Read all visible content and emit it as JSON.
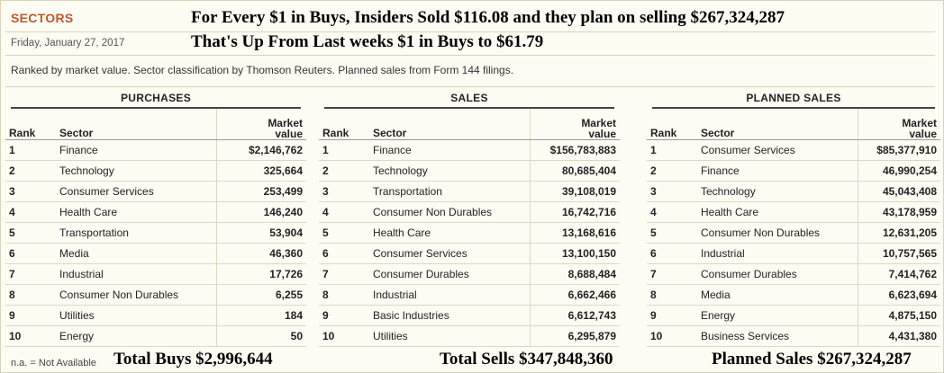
{
  "header": {
    "section_title": "SECTORS",
    "date": "Friday, January 27, 2017",
    "headline1": "For Every $1 in Buys, Insiders Sold $116.08 and they plan on selling $267,324,287",
    "headline2": "That's Up From Last weeks $1 in Buys to $61.79",
    "description": "Ranked by market value. Sector classification by Thomson Reuters. Planned sales from Form 144 filings."
  },
  "columns": {
    "rank": "Rank",
    "sector": "Sector",
    "value_line1": "Market",
    "value_line2": "value"
  },
  "purchases": {
    "title": "PURCHASES",
    "rows": [
      {
        "rank": "1",
        "sector": "Finance",
        "value": "$2,146,762"
      },
      {
        "rank": "2",
        "sector": "Technology",
        "value": "325,664"
      },
      {
        "rank": "3",
        "sector": "Consumer Services",
        "value": "253,499"
      },
      {
        "rank": "4",
        "sector": "Health Care",
        "value": "146,240"
      },
      {
        "rank": "5",
        "sector": "Transportation",
        "value": "53,904"
      },
      {
        "rank": "6",
        "sector": "Media",
        "value": "46,360"
      },
      {
        "rank": "7",
        "sector": "Industrial",
        "value": "17,726"
      },
      {
        "rank": "8",
        "sector": "Consumer Non Durables",
        "value": "6,255"
      },
      {
        "rank": "9",
        "sector": "Utilities",
        "value": "184"
      },
      {
        "rank": "10",
        "sector": "Energy",
        "value": "50"
      }
    ]
  },
  "sales": {
    "title": "SALES",
    "rows": [
      {
        "rank": "1",
        "sector": "Finance",
        "value": "$156,783,883"
      },
      {
        "rank": "2",
        "sector": "Technology",
        "value": "80,685,404"
      },
      {
        "rank": "3",
        "sector": "Transportation",
        "value": "39,108,019"
      },
      {
        "rank": "4",
        "sector": "Consumer Non Durables",
        "value": "16,742,716"
      },
      {
        "rank": "5",
        "sector": "Health Care",
        "value": "13,168,616"
      },
      {
        "rank": "6",
        "sector": "Consumer Services",
        "value": "13,100,150"
      },
      {
        "rank": "7",
        "sector": "Consumer Durables",
        "value": "8,688,484"
      },
      {
        "rank": "8",
        "sector": "Industrial",
        "value": "6,662,466"
      },
      {
        "rank": "9",
        "sector": "Basic Industries",
        "value": "6,612,743"
      },
      {
        "rank": "10",
        "sector": "Utilities",
        "value": "6,295,879"
      }
    ]
  },
  "planned": {
    "title": "PLANNED SALES",
    "rows": [
      {
        "rank": "1",
        "sector": "Consumer Services",
        "value": "$85,377,910"
      },
      {
        "rank": "2",
        "sector": "Finance",
        "value": "46,990,254"
      },
      {
        "rank": "3",
        "sector": "Technology",
        "value": "45,043,408"
      },
      {
        "rank": "4",
        "sector": "Health Care",
        "value": "43,178,959"
      },
      {
        "rank": "5",
        "sector": "Consumer Non Durables",
        "value": "12,631,205"
      },
      {
        "rank": "6",
        "sector": "Industrial",
        "value": "10,757,565"
      },
      {
        "rank": "7",
        "sector": "Consumer Durables",
        "value": "7,414,762"
      },
      {
        "rank": "8",
        "sector": "Media",
        "value": "6,623,694"
      },
      {
        "rank": "9",
        "sector": "Energy",
        "value": "4,875,150"
      },
      {
        "rank": "10",
        "sector": "Business Services",
        "value": "4,431,380"
      }
    ]
  },
  "footer": {
    "note": "n.a. = Not Available",
    "total_buys": "Total Buys $2,996,644",
    "total_sells": "Total Sells $347,848,360",
    "planned_sales": "Planned Sales $267,324,287"
  }
}
